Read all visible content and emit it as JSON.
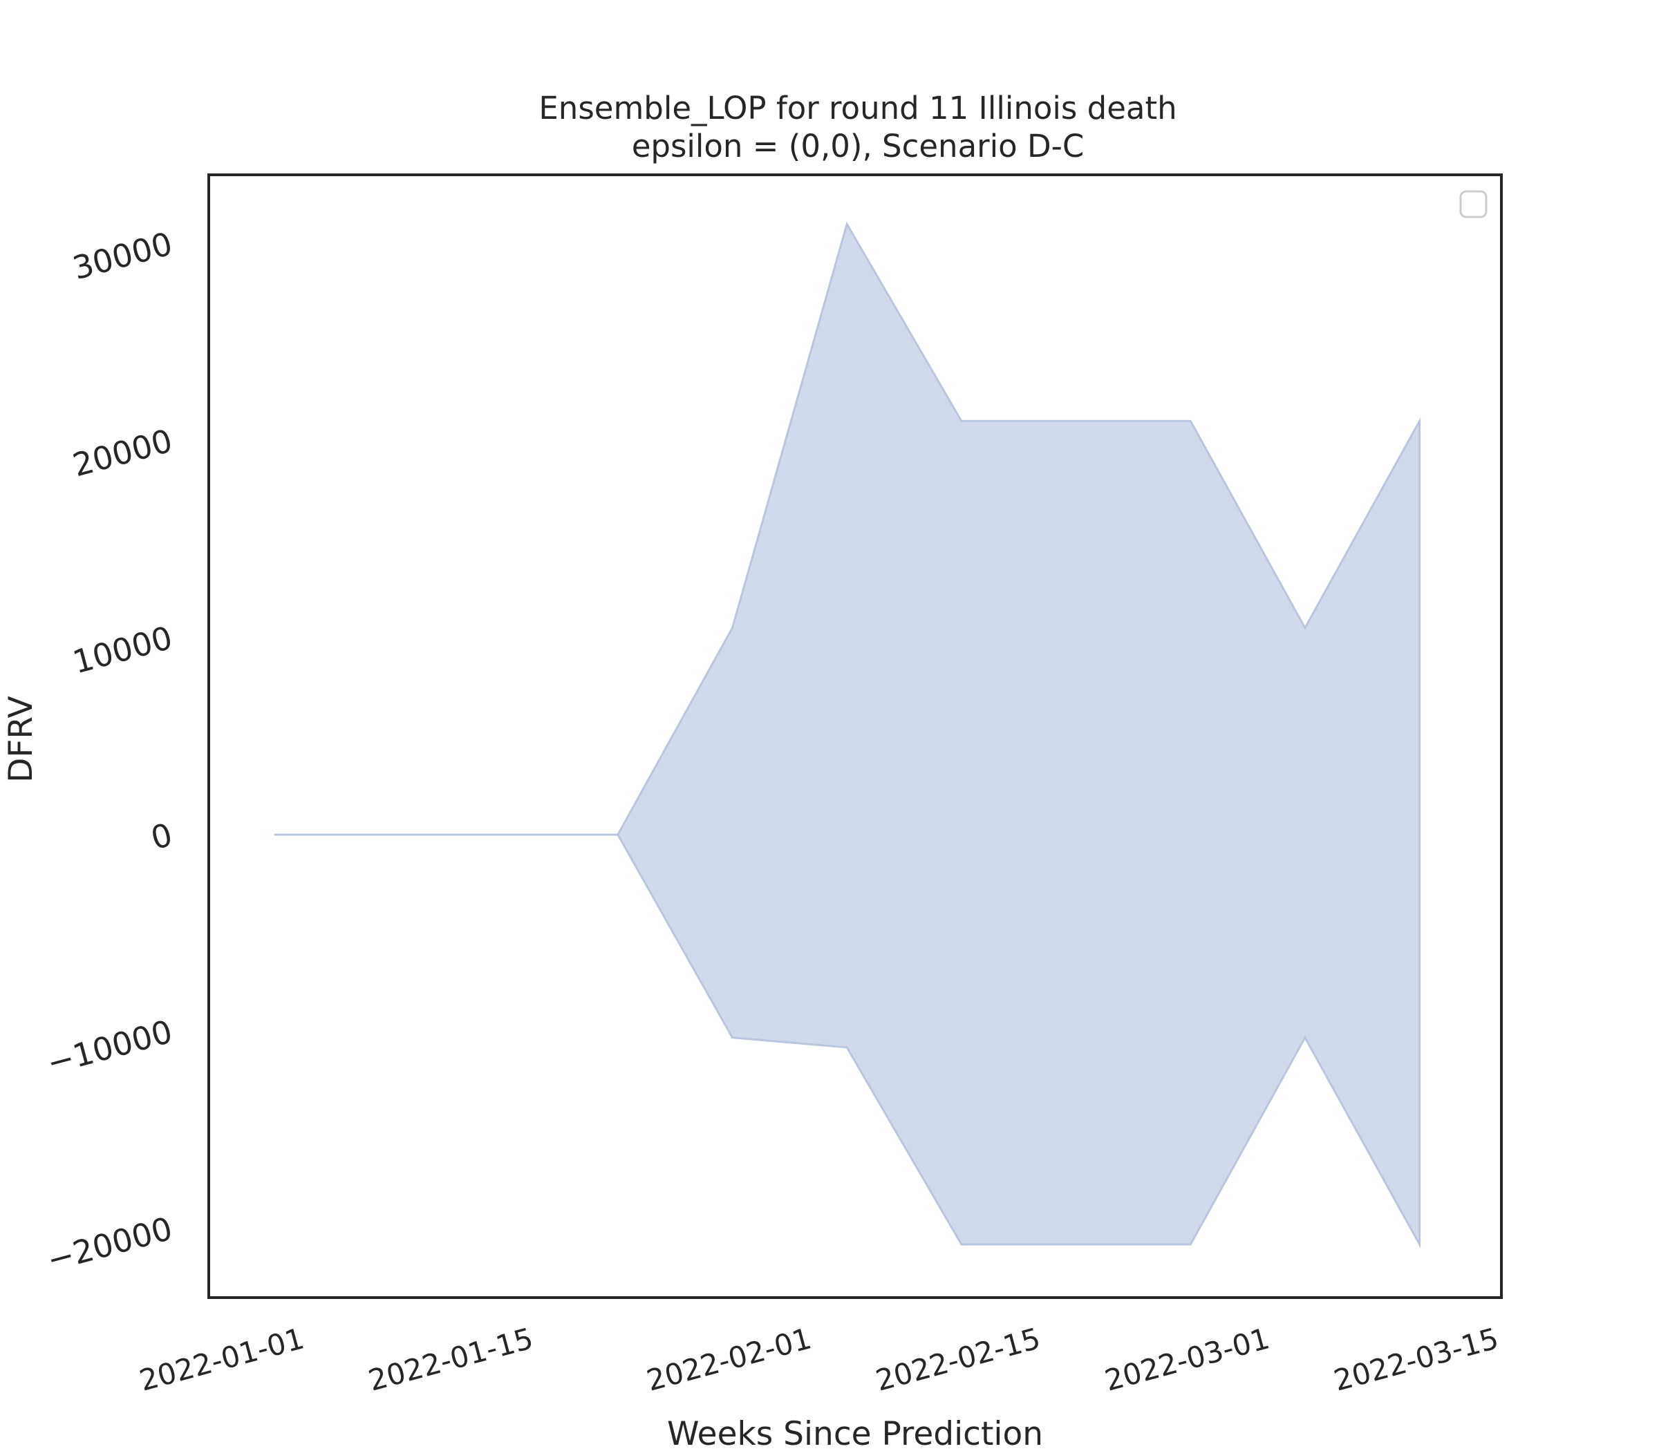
{
  "chart_data": {
    "type": "area",
    "title": "Ensemble_LOP for round 11 Illinois death",
    "subtitle": "epsilon = (0,0), Scenario D-C",
    "xlabel": "Weeks Since Prediction",
    "ylabel": "DFRV",
    "x_tick_labels": [
      "2022-01-01",
      "2022-01-15",
      "2022-02-01",
      "2022-02-15",
      "2022-03-01",
      "2022-03-15"
    ],
    "y_tick_labels": [
      "−20000",
      "−10000",
      "0",
      "10000",
      "20000",
      "30000"
    ],
    "y_ticks": [
      -20000,
      -10000,
      0,
      10000,
      20000,
      30000
    ],
    "xlim": [
      "2021-12-27",
      "2022-03-16"
    ],
    "ylim": [
      -23500,
      33500
    ],
    "grid": false,
    "legend": "top-right (empty)",
    "fill_color": "#b8c6e1",
    "series": [
      {
        "x": [
          "2021-12-31",
          "2022-01-07",
          "2022-01-14",
          "2022-01-21",
          "2022-01-28",
          "2022-02-04",
          "2022-02-11",
          "2022-02-18",
          "2022-02-25",
          "2022-03-04",
          "2022-03-11"
        ],
        "upper": [
          0,
          0,
          0,
          0,
          10500,
          31000,
          21000,
          21000,
          21000,
          10500,
          21000
        ],
        "lower": [
          0,
          0,
          0,
          0,
          -10300,
          -10800,
          -20800,
          -20800,
          -20800,
          -10300,
          -20800
        ]
      }
    ]
  }
}
